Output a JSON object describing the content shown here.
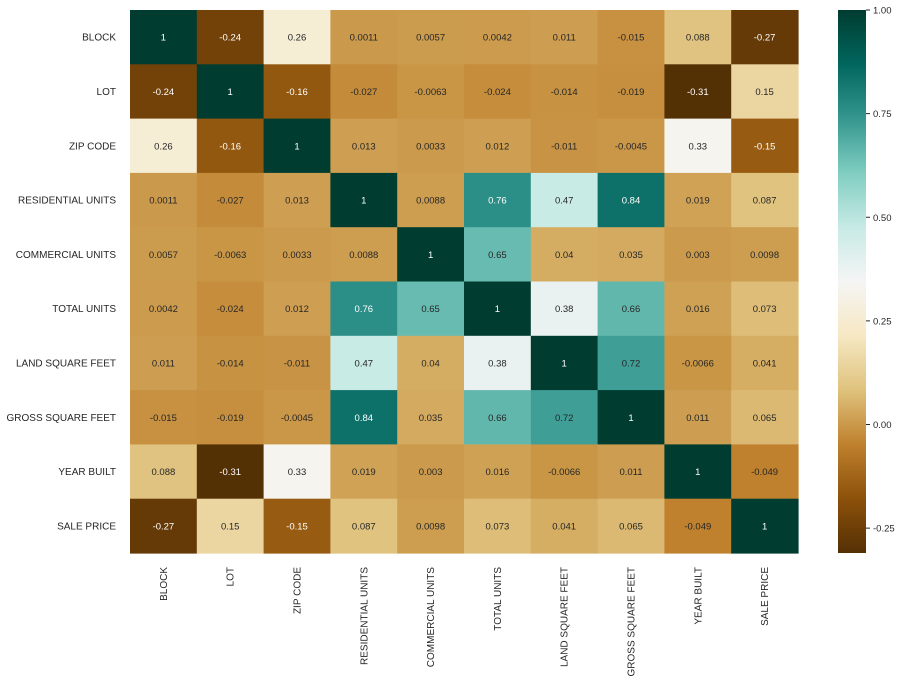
{
  "chart_data": {
    "type": "heatmap",
    "title": "",
    "xlabel": "",
    "ylabel": "",
    "categories": [
      "BLOCK",
      "LOT",
      "ZIP CODE",
      "RESIDENTIAL UNITS",
      "COMMERCIAL UNITS",
      "TOTAL UNITS",
      "LAND SQUARE FEET",
      "GROSS SQUARE FEET",
      "YEAR BUILT",
      "SALE PRICE"
    ],
    "cell_labels": [
      [
        "1",
        "-0.24",
        "0.26",
        "0.0011",
        "0.0057",
        "0.0042",
        "0.011",
        "-0.015",
        "0.088",
        "-0.27"
      ],
      [
        "-0.24",
        "1",
        "-0.16",
        "-0.027",
        "-0.0063",
        "-0.024",
        "-0.014",
        "-0.019",
        "-0.31",
        "0.15"
      ],
      [
        "0.26",
        "-0.16",
        "1",
        "0.013",
        "0.0033",
        "0.012",
        "-0.011",
        "-0.0045",
        "0.33",
        "-0.15"
      ],
      [
        "0.0011",
        "-0.027",
        "0.013",
        "1",
        "0.0088",
        "0.76",
        "0.47",
        "0.84",
        "0.019",
        "0.087"
      ],
      [
        "0.0057",
        "-0.0063",
        "0.0033",
        "0.0088",
        "1",
        "0.65",
        "0.04",
        "0.035",
        "0.003",
        "0.0098"
      ],
      [
        "0.0042",
        "-0.024",
        "0.012",
        "0.76",
        "0.65",
        "1",
        "0.38",
        "0.66",
        "0.016",
        "0.073"
      ],
      [
        "0.011",
        "-0.014",
        "-0.011",
        "0.47",
        "0.04",
        "0.38",
        "1",
        "0.72",
        "-0.0066",
        "0.041"
      ],
      [
        "-0.015",
        "-0.019",
        "-0.0045",
        "0.84",
        "0.035",
        "0.66",
        "0.72",
        "1",
        "0.011",
        "0.065"
      ],
      [
        "0.088",
        "-0.31",
        "0.33",
        "0.019",
        "0.003",
        "0.016",
        "-0.0066",
        "0.011",
        "1",
        "-0.049"
      ],
      [
        "-0.27",
        "0.15",
        "-0.15",
        "0.087",
        "0.0098",
        "0.073",
        "0.041",
        "0.065",
        "-0.049",
        "1"
      ]
    ],
    "vmin": -0.31,
    "vmax": 1,
    "colormap": "BrBG",
    "colormap_stops": [
      "#543005",
      "#8c510a",
      "#bf812d",
      "#dfc27d",
      "#f6e8c3",
      "#f5f5f5",
      "#c7eae5",
      "#80cdc1",
      "#35978f",
      "#01665e",
      "#003c30"
    ],
    "colorbar_ticks": [
      "-0.25",
      "0.00",
      "0.25",
      "0.50",
      "0.75",
      "1.00"
    ],
    "annotation_color_dark_bg": "#ffffff",
    "annotation_color_light_bg": "#262626",
    "grid": false,
    "legend": "colorbar-right"
  }
}
